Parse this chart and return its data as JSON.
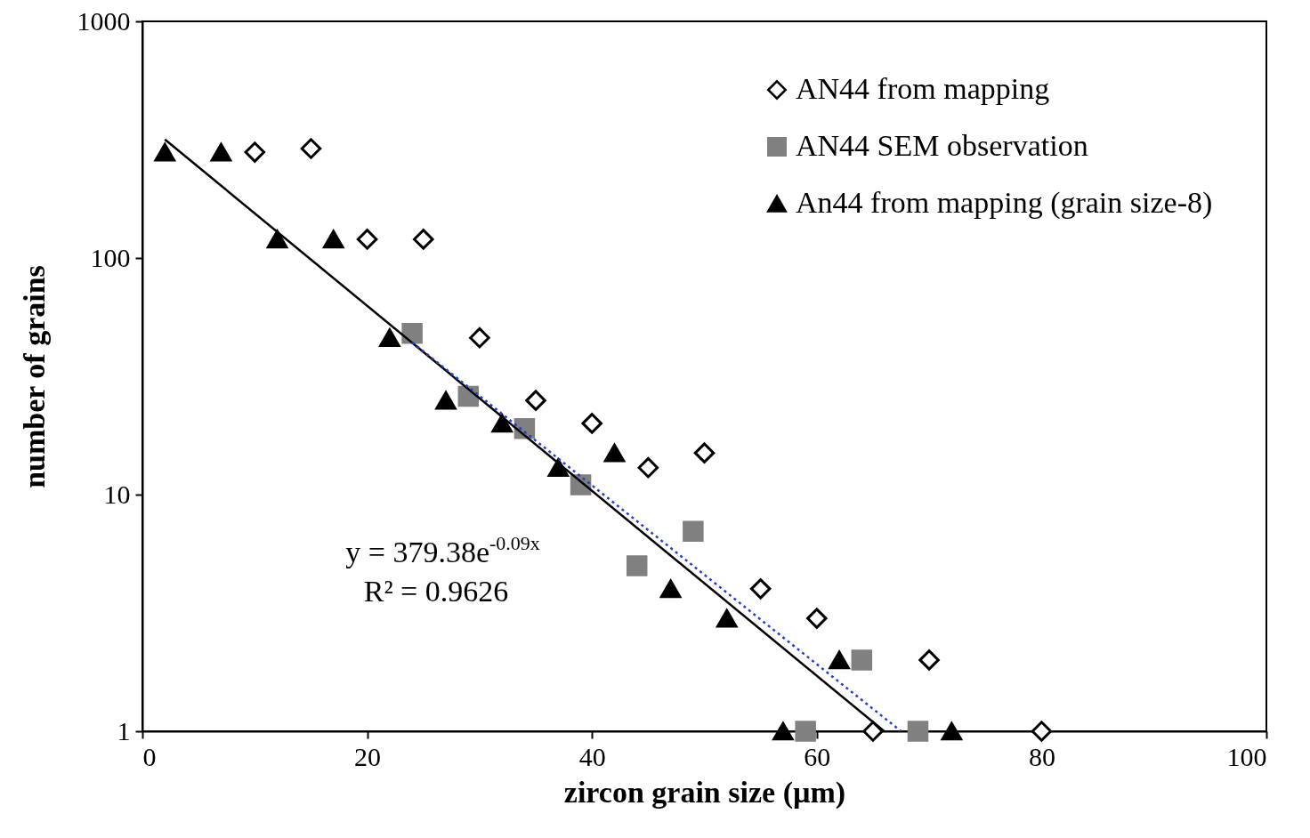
{
  "chart_data": {
    "type": "scatter",
    "xlabel": "zircon grain size (µm)",
    "ylabel": "number of grains",
    "log": "y",
    "xlim": [
      0,
      100
    ],
    "xticks": [
      0,
      20,
      40,
      60,
      80,
      100
    ],
    "ylim": [
      1,
      1000
    ],
    "yticks": [
      1,
      10,
      100,
      1000
    ],
    "grid": false,
    "legend": "top right",
    "series": [
      {
        "name": "AN44 from mapping",
        "color": "#000000",
        "marker": "diamond",
        "x": [
          10,
          15,
          20,
          25,
          30,
          35,
          40,
          45,
          50,
          55,
          60,
          65,
          70,
          80
        ],
        "values": [
          280,
          290,
          120,
          120,
          46,
          25,
          20,
          13,
          15,
          4,
          3,
          1,
          2,
          1
        ]
      },
      {
        "name": "AN44 SEM observation",
        "color": "#808080",
        "marker": "square",
        "x": [
          24,
          29,
          34,
          39,
          44,
          49,
          59,
          64,
          69
        ],
        "values": [
          48,
          26,
          19,
          11,
          5,
          7,
          1,
          2,
          1
        ]
      },
      {
        "name": "An44 from mapping (grain size-8)",
        "color": "#000000",
        "marker": "triangle",
        "x": [
          2,
          7,
          12,
          17,
          22,
          27,
          32,
          37,
          42,
          47,
          52,
          57,
          62,
          72
        ],
        "values": [
          280,
          280,
          120,
          120,
          46,
          25,
          20,
          13,
          15,
          4,
          3,
          1,
          2,
          1
        ]
      },
      {
        "type": "line",
        "color": "#000000",
        "line_style": "solid",
        "x": [
          2,
          66
        ],
        "values": [
          317,
          1
        ]
      },
      {
        "type": "line",
        "color": "#1f3fd0",
        "line_style": "dotted",
        "x": [
          24,
          67.5
        ],
        "values": [
          44,
          1
        ]
      }
    ],
    "annotations": [
      "y = 379.38e$^{-0.09x}$",
      "R² = 0.9626"
    ]
  }
}
